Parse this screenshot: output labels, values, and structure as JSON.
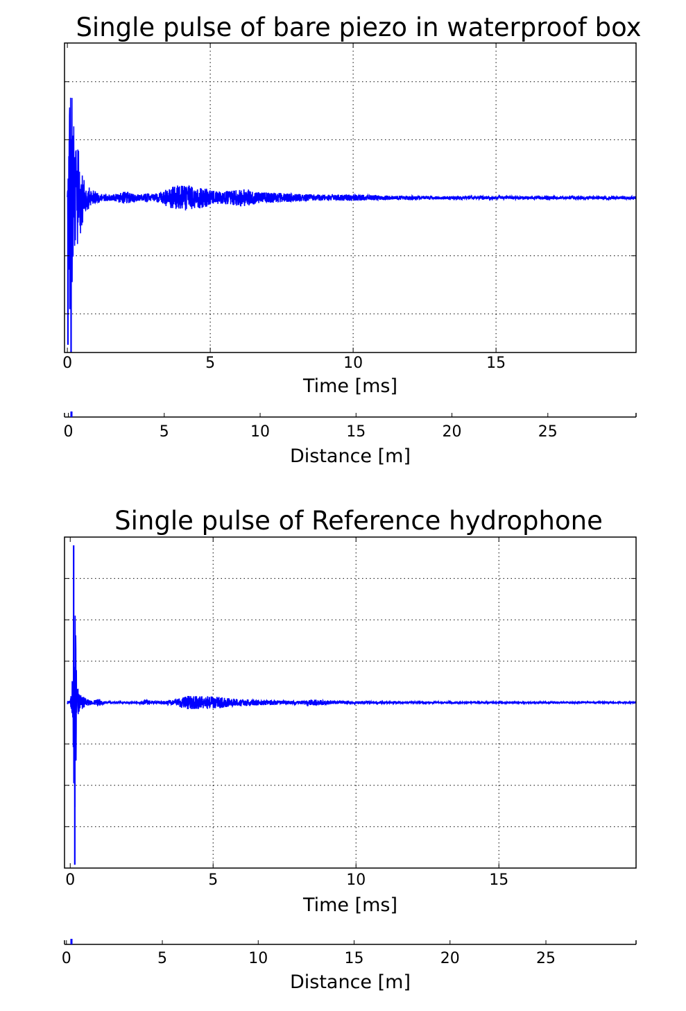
{
  "chart_data": [
    {
      "type": "line",
      "title": "Single pulse of bare piezo in waterproof box",
      "xlabel": "Time [ms]",
      "x_ticks": [
        0,
        5,
        10,
        15
      ],
      "xlim": [
        -0.1,
        19.9
      ],
      "ylim": [
        -1.0,
        1.0
      ],
      "y_gridlines": [
        -0.75,
        -0.375,
        0.375,
        0.75
      ],
      "grid": true,
      "secondary_xaxis": {
        "xlabel": "Distance [m]",
        "x_ticks": [
          0,
          5,
          10,
          15,
          20,
          25
        ],
        "xlim": [
          -0.2,
          29.6
        ]
      },
      "series": [
        {
          "color": "#0000ff",
          "envelope": [
            [
              0.0,
              0.01
            ],
            [
              0.04,
              0.55
            ],
            [
              0.08,
              0.95
            ],
            [
              0.12,
              0.85
            ],
            [
              0.16,
              0.78
            ],
            [
              0.2,
              0.55
            ],
            [
              0.25,
              0.42
            ],
            [
              0.3,
              0.38
            ],
            [
              0.4,
              0.3
            ],
            [
              0.5,
              0.2
            ],
            [
              0.6,
              0.1
            ],
            [
              0.8,
              0.06
            ],
            [
              1.0,
              0.04
            ],
            [
              1.2,
              0.025
            ],
            [
              1.5,
              0.02
            ],
            [
              1.8,
              0.03
            ],
            [
              2.0,
              0.04
            ],
            [
              2.3,
              0.03
            ],
            [
              2.5,
              0.02
            ],
            [
              2.8,
              0.03
            ],
            [
              3.0,
              0.02
            ],
            [
              3.4,
              0.05
            ],
            [
              3.8,
              0.08
            ],
            [
              4.1,
              0.09
            ],
            [
              4.4,
              0.07
            ],
            [
              4.7,
              0.07
            ],
            [
              5.0,
              0.05
            ],
            [
              5.4,
              0.04
            ],
            [
              5.8,
              0.05
            ],
            [
              6.2,
              0.06
            ],
            [
              6.6,
              0.04
            ],
            [
              7.0,
              0.035
            ],
            [
              8.0,
              0.025
            ],
            [
              9.0,
              0.02
            ],
            [
              10.0,
              0.02
            ],
            [
              11.0,
              0.015
            ],
            [
              13.0,
              0.01
            ],
            [
              16.0,
              0.01
            ],
            [
              19.9,
              0.01
            ]
          ],
          "spikes": [
            [
              0.13,
              -1.1
            ],
            [
              0.02,
              -0.95
            ],
            [
              0.09,
              -0.72
            ]
          ]
        }
      ]
    },
    {
      "type": "line",
      "title": "Single pulse of Reference hydrophone",
      "xlabel": "Time [ms]",
      "x_ticks": [
        0,
        5,
        10,
        15
      ],
      "xlim": [
        -0.2,
        19.8
      ],
      "ylim": [
        -1.0,
        1.0
      ],
      "y_gridlines": [
        -0.75,
        -0.5,
        -0.25,
        0.25,
        0.5,
        0.75
      ],
      "grid": true,
      "secondary_xaxis": {
        "xlabel": "Distance [m]",
        "x_ticks": [
          0,
          5,
          10,
          15,
          20,
          25
        ],
        "xlim": [
          -0.1,
          29.7
        ]
      },
      "series": [
        {
          "color": "#0000ff",
          "envelope": [
            [
              0.0,
              0.01
            ],
            [
              0.1,
              0.2
            ],
            [
              0.14,
              0.98
            ],
            [
              0.18,
              0.6
            ],
            [
              0.22,
              0.2
            ],
            [
              0.3,
              0.06
            ],
            [
              0.5,
              0.03
            ],
            [
              0.8,
              0.01
            ],
            [
              1.0,
              0.025
            ],
            [
              1.2,
              0.005
            ],
            [
              2.4,
              0.005
            ],
            [
              2.6,
              0.02
            ],
            [
              2.8,
              0.01
            ],
            [
              3.0,
              0.005
            ],
            [
              3.7,
              0.02
            ],
            [
              4.0,
              0.04
            ],
            [
              4.6,
              0.04
            ],
            [
              5.2,
              0.035
            ],
            [
              5.6,
              0.025
            ],
            [
              6.0,
              0.02
            ],
            [
              7.0,
              0.015
            ],
            [
              8.0,
              0.01
            ],
            [
              8.6,
              0.02
            ],
            [
              9.0,
              0.01
            ],
            [
              10.0,
              0.008
            ],
            [
              12.0,
              0.005
            ],
            [
              16.0,
              0.004
            ],
            [
              19.8,
              0.004
            ]
          ],
          "spikes": [
            [
              0.16,
              -0.98
            ],
            [
              0.12,
              0.95
            ]
          ]
        }
      ]
    }
  ]
}
